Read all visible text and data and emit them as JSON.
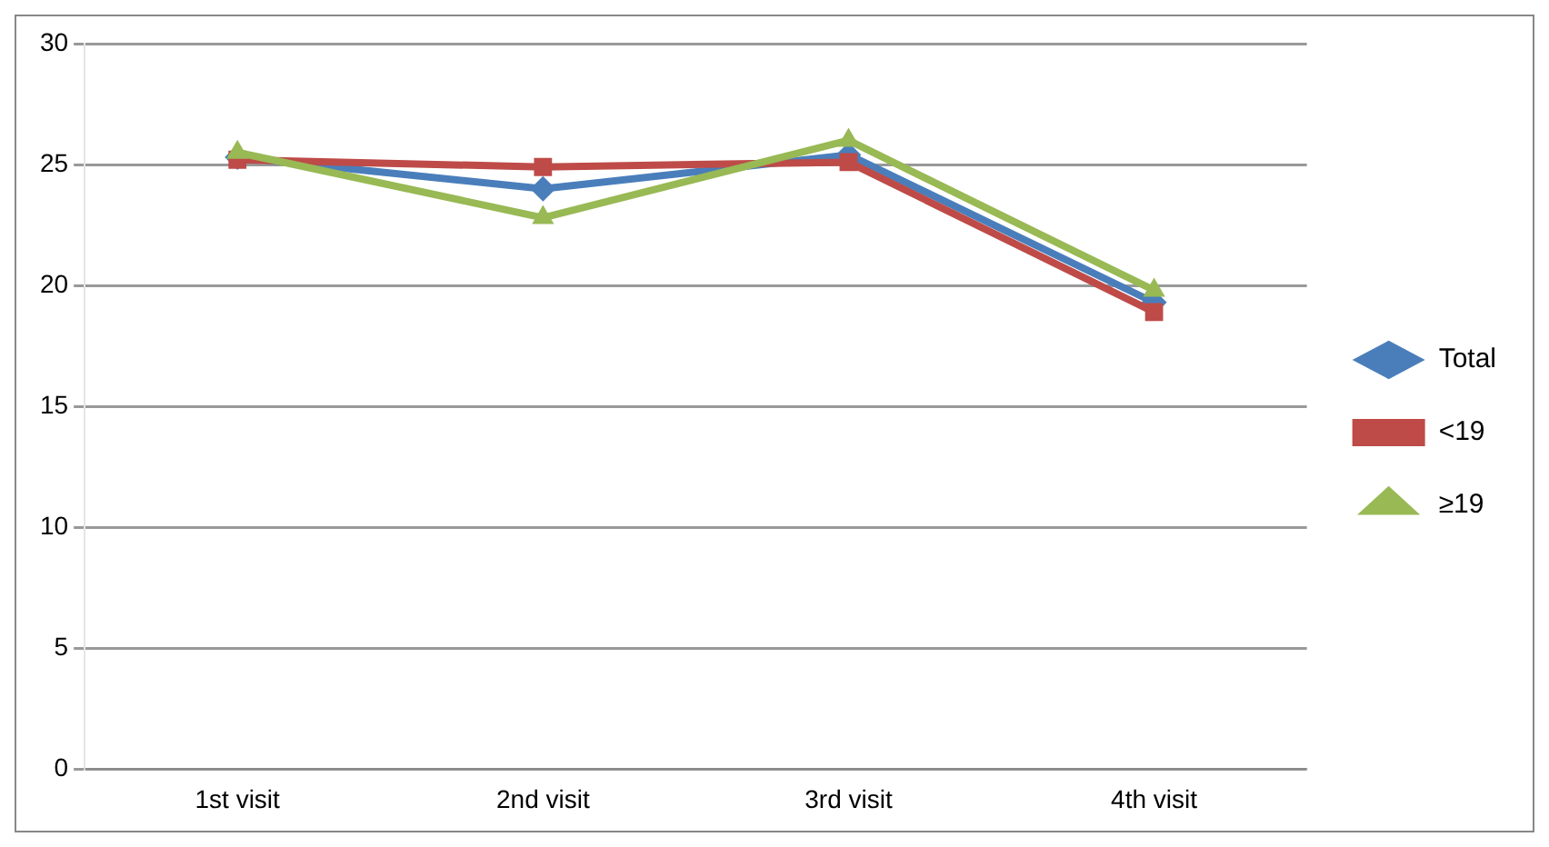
{
  "chart_data": {
    "type": "line",
    "categories": [
      "1st visit",
      "2nd visit",
      "3rd visit",
      "4th visit"
    ],
    "series": [
      {
        "name": "Total",
        "color": "#4a7ebb",
        "values": [
          25.3,
          24.0,
          25.4,
          19.3
        ],
        "marker": "diamond"
      },
      {
        "name": "<19",
        "color": "#be4b48",
        "values": [
          25.2,
          24.9,
          25.1,
          18.9
        ],
        "marker": "square"
      },
      {
        "name": "≥19",
        "color": "#98b954",
        "values": [
          25.5,
          22.8,
          26.0,
          19.8
        ],
        "marker": "triangle"
      }
    ],
    "ylim": [
      0,
      30
    ],
    "yticks": [
      0,
      5,
      10,
      15,
      20,
      25,
      30
    ],
    "grid": "y",
    "legend": "right"
  }
}
